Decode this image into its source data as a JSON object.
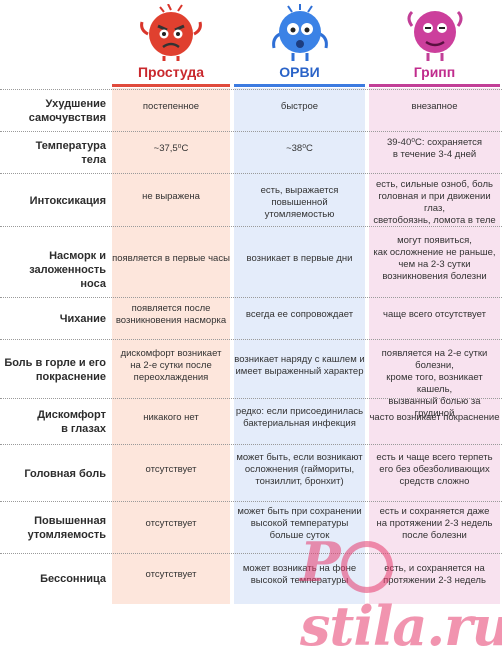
{
  "columns": {
    "cold": "Простуда",
    "orvi": "ОРВИ",
    "flu": "Грипп"
  },
  "colors": {
    "cold": "#e04a3c",
    "orvi": "#3d7be0",
    "flu": "#c23f97"
  },
  "icons": {
    "cold": "angry-red-virus-mascot-icon",
    "orvi": "worried-blue-virus-mascot-icon",
    "flu": "pink-virus-mascot-icon"
  },
  "rows": [
    {
      "label": [
        "Ухудшение",
        "самочувствия"
      ],
      "cold": [
        "постепенное"
      ],
      "orvi": [
        "быстрое"
      ],
      "flu": [
        "внезапное"
      ]
    },
    {
      "label": [
        "Температура",
        "тела"
      ],
      "cold": [
        "~37,5⁰С"
      ],
      "orvi": [
        "~38⁰С"
      ],
      "flu": [
        "39-40⁰С: сохраняется",
        "в течение 3-4 дней"
      ]
    },
    {
      "label": [
        "Интоксикация"
      ],
      "cold": [
        "не выражена"
      ],
      "orvi": [
        "есть, выражается повышенной",
        "утомляемостью"
      ],
      "flu": [
        "есть, сильные озноб, боль",
        "головная и при движении глаз,",
        "светобоязнь, ломота в теле"
      ]
    },
    {
      "label": [
        "Насморк и",
        "заложенность носа"
      ],
      "cold": [
        "появляется в первые часы"
      ],
      "orvi": [
        "возникает в первые дни"
      ],
      "flu": [
        "могут появиться,",
        "как осложнение не раньше,",
        "чем на 2-3 сутки",
        "возникновения болезни"
      ]
    },
    {
      "label": [
        "Чихание"
      ],
      "cold": [
        "появляется после",
        "возникновения насморка"
      ],
      "orvi": [
        "всегда ее сопровождает"
      ],
      "flu": [
        "чаще всего отсутствует"
      ]
    },
    {
      "label": [
        "Боль в горле и его",
        "покраснение"
      ],
      "cold": [
        "дискомфорт возникает",
        "на 2-е сутки после",
        "переохлаждения"
      ],
      "orvi": [
        "возникает наряду с кашлем и",
        "имеет выраженный характер"
      ],
      "flu": [
        "появляется на 2-е сутки болезни,",
        "кроме того, возникает кашель,",
        "вызванный болью за грудиной"
      ]
    },
    {
      "label": [
        "Дискомфорт",
        "в глазах"
      ],
      "cold": [
        "никакого нет"
      ],
      "orvi": [
        "редко: если присоединилась",
        "бактериальная инфекция"
      ],
      "flu": [
        "часто возникает покраснение"
      ]
    },
    {
      "label": [
        "Головная боль"
      ],
      "cold": [
        "отсутствует"
      ],
      "orvi": [
        "может быть, если возникают",
        "осложнения (гаймориты,",
        "тонзиллит, бронхит)"
      ],
      "flu": [
        "есть и чаще всего терпеть",
        "его без обезболивающих",
        "средств сложно"
      ]
    },
    {
      "label": [
        "Повышенная",
        "утомляемость"
      ],
      "cold": [
        "отсутствует"
      ],
      "orvi": [
        "может быть при сохранении",
        "высокой температуры",
        "больше суток"
      ],
      "flu": [
        "есть и сохраняется даже",
        "на протяжении 2-3 недель",
        "после болезни"
      ]
    },
    {
      "label": [
        "Бессонница"
      ],
      "cold": [
        "отсутствует"
      ],
      "orvi": [
        "может возникать на фоне",
        "высокой температуры"
      ],
      "flu": [
        "есть, и сохраняется на",
        "протяжении 2-3 недель"
      ]
    }
  ],
  "watermark": {
    "pre": "P",
    "post": "stila.ru"
  }
}
